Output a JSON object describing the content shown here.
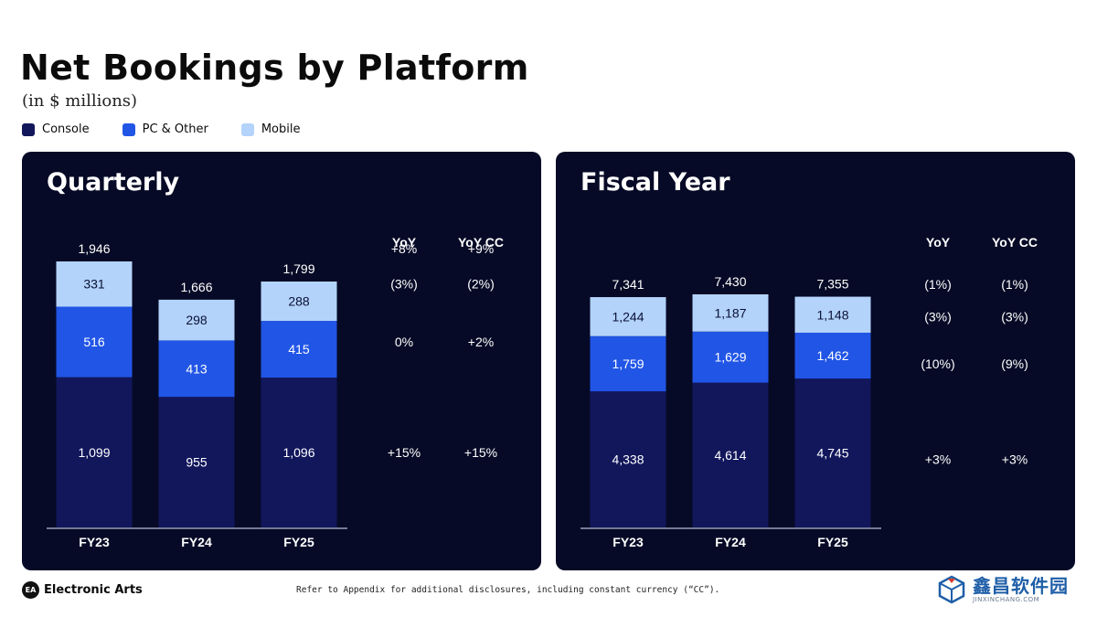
{
  "title": "Net Bookings by Platform",
  "subtitle": "(in $ millions)",
  "legend": [
    {
      "label": "Console",
      "color": "#12175c"
    },
    {
      "label": "PC & Other",
      "color": "#2155e6"
    },
    {
      "label": "Mobile",
      "color": "#b3d3fb"
    }
  ],
  "chart_data": [
    {
      "type": "bar",
      "stacked": true,
      "title": "Quarterly",
      "categories": [
        "FY23",
        "FY24",
        "FY25"
      ],
      "series": [
        {
          "name": "Console",
          "values": [
            1099,
            955,
            1096
          ]
        },
        {
          "name": "PC & Other",
          "values": [
            516,
            413,
            415
          ]
        },
        {
          "name": "Mobile",
          "values": [
            331,
            298,
            288
          ]
        }
      ],
      "totals": [
        1946,
        1666,
        1799
      ],
      "value_labels": {
        "Console": [
          "1,099",
          "955",
          "1,096"
        ],
        "PC & Other": [
          "516",
          "413",
          "415"
        ],
        "Mobile": [
          "331",
          "298",
          "288"
        ]
      },
      "total_labels": [
        "1,946",
        "1,666",
        "1,799"
      ],
      "ylim": [
        0,
        2100
      ],
      "yoy_headers": [
        "YoY",
        "YoY CC"
      ],
      "yoy": {
        "Total": [
          "+8%",
          "+9%"
        ],
        "Mobile": [
          "(3%)",
          "(2%)"
        ],
        "PC & Other": [
          "0%",
          "+2%"
        ],
        "Console": [
          "+15%",
          "+15%"
        ]
      }
    },
    {
      "type": "bar",
      "stacked": true,
      "title": "Fiscal Year",
      "categories": [
        "FY23",
        "FY24",
        "FY25"
      ],
      "series": [
        {
          "name": "Console",
          "values": [
            4338,
            4614,
            4745
          ]
        },
        {
          "name": "PC & Other",
          "values": [
            1759,
            1629,
            1462
          ]
        },
        {
          "name": "Mobile",
          "values": [
            1244,
            1187,
            1148
          ]
        }
      ],
      "totals": [
        7341,
        7430,
        7355
      ],
      "value_labels": {
        "Console": [
          "4,338",
          "4,614",
          "4,745"
        ],
        "PC & Other": [
          "1,759",
          "1,629",
          "1,462"
        ],
        "Mobile": [
          "1,244",
          "1,187",
          "1,148"
        ]
      },
      "total_labels": [
        "7,341",
        "7,430",
        "7,355"
      ],
      "ylim": [
        0,
        7430
      ],
      "yoy_headers": [
        "YoY",
        "YoY CC"
      ],
      "yoy": {
        "Total": [
          "(1%)",
          "(1%)"
        ],
        "Mobile": [
          "(3%)",
          "(3%)"
        ],
        "PC & Other": [
          "(10%)",
          "(9%)"
        ],
        "Console": [
          "+3%",
          "+3%"
        ]
      }
    }
  ],
  "footer": {
    "logo_mark": "EA",
    "logo_text": "Electronic Arts",
    "note": "Refer to Appendix for additional disclosures, including constant currency (“CC”)."
  },
  "watermark": {
    "main": "鑫昌软件园",
    "sub": "JINXINCHANG.COM"
  },
  "colors": {
    "panel_bg": "#060a26",
    "console": "#12175c",
    "pc": "#2155e6",
    "mobile": "#b3d3fb"
  }
}
